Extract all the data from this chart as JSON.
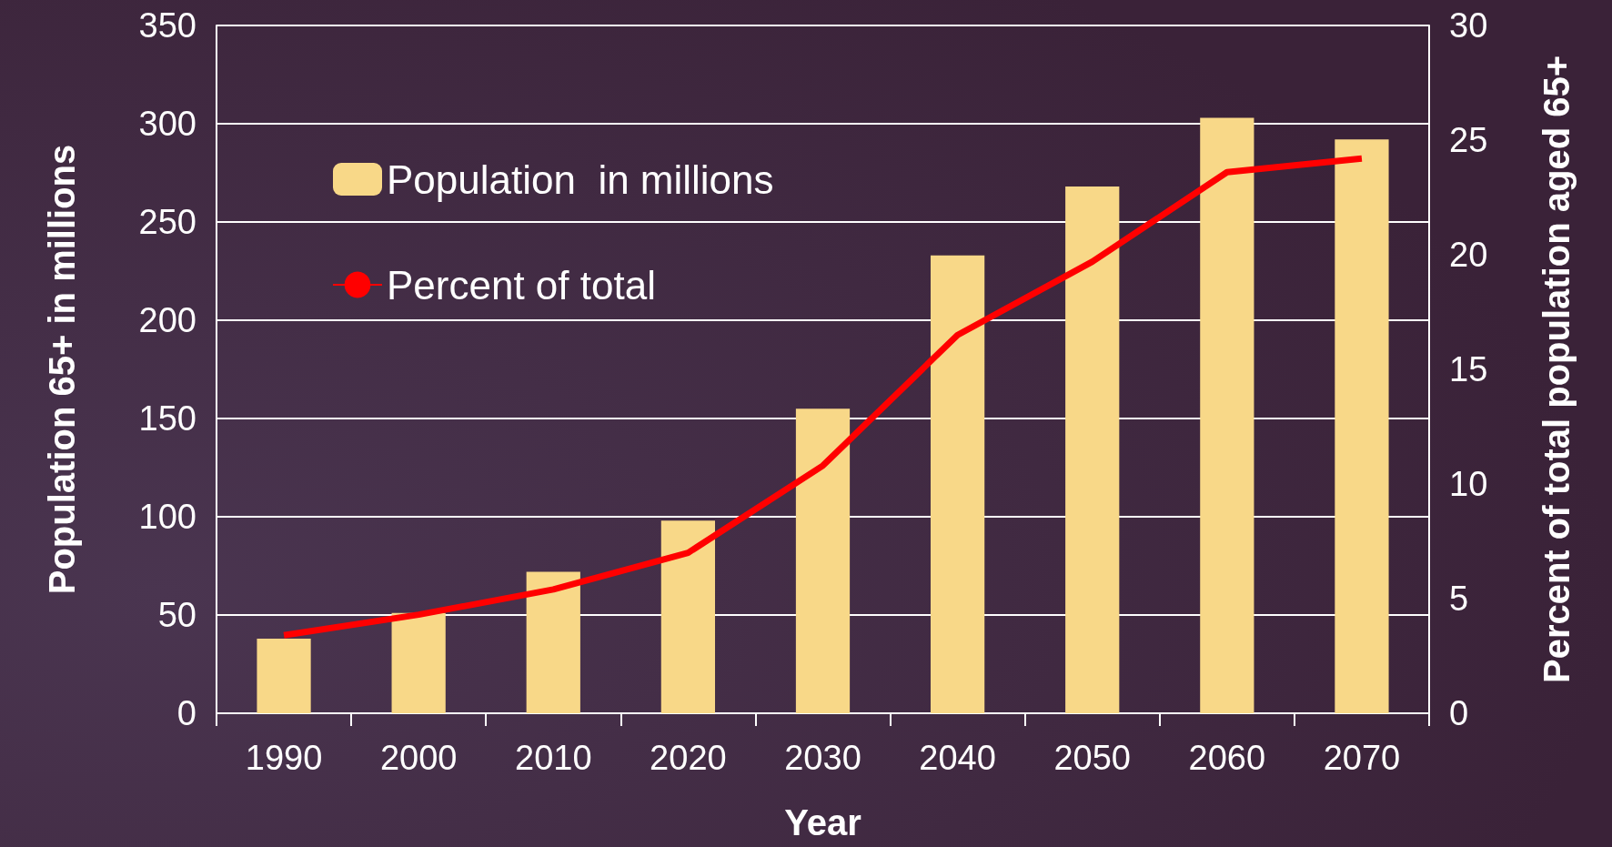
{
  "chart_data": {
    "type": "bar",
    "xlabel": "Year",
    "ylabel": "Population 65+ in millions",
    "y2label": "Percent of total population aged 65+",
    "categories": [
      "1990",
      "2000",
      "2010",
      "2020",
      "2030",
      "2040",
      "2050",
      "2060",
      "2070"
    ],
    "series": [
      {
        "name": "Population  in millions",
        "color": "#f8d888",
        "values": [
          38,
          51,
          72,
          98,
          155,
          233,
          268,
          303,
          292
        ]
      },
      {
        "name": "Percent of total",
        "type": "line",
        "axis": "y2",
        "color": "#ff0000",
        "values": [
          3.4,
          4.3,
          5.4,
          7.0,
          10.8,
          16.5,
          19.7,
          23.6,
          24.2
        ]
      }
    ],
    "ylim": [
      0,
      350
    ],
    "yticks": [
      0,
      50,
      100,
      150,
      200,
      250,
      300,
      350
    ],
    "y2lim": [
      0,
      30
    ],
    "y2ticks": [
      0,
      5,
      10,
      15,
      20,
      25,
      30
    ],
    "grid": "y",
    "legend": "top left",
    "marker": "none"
  }
}
